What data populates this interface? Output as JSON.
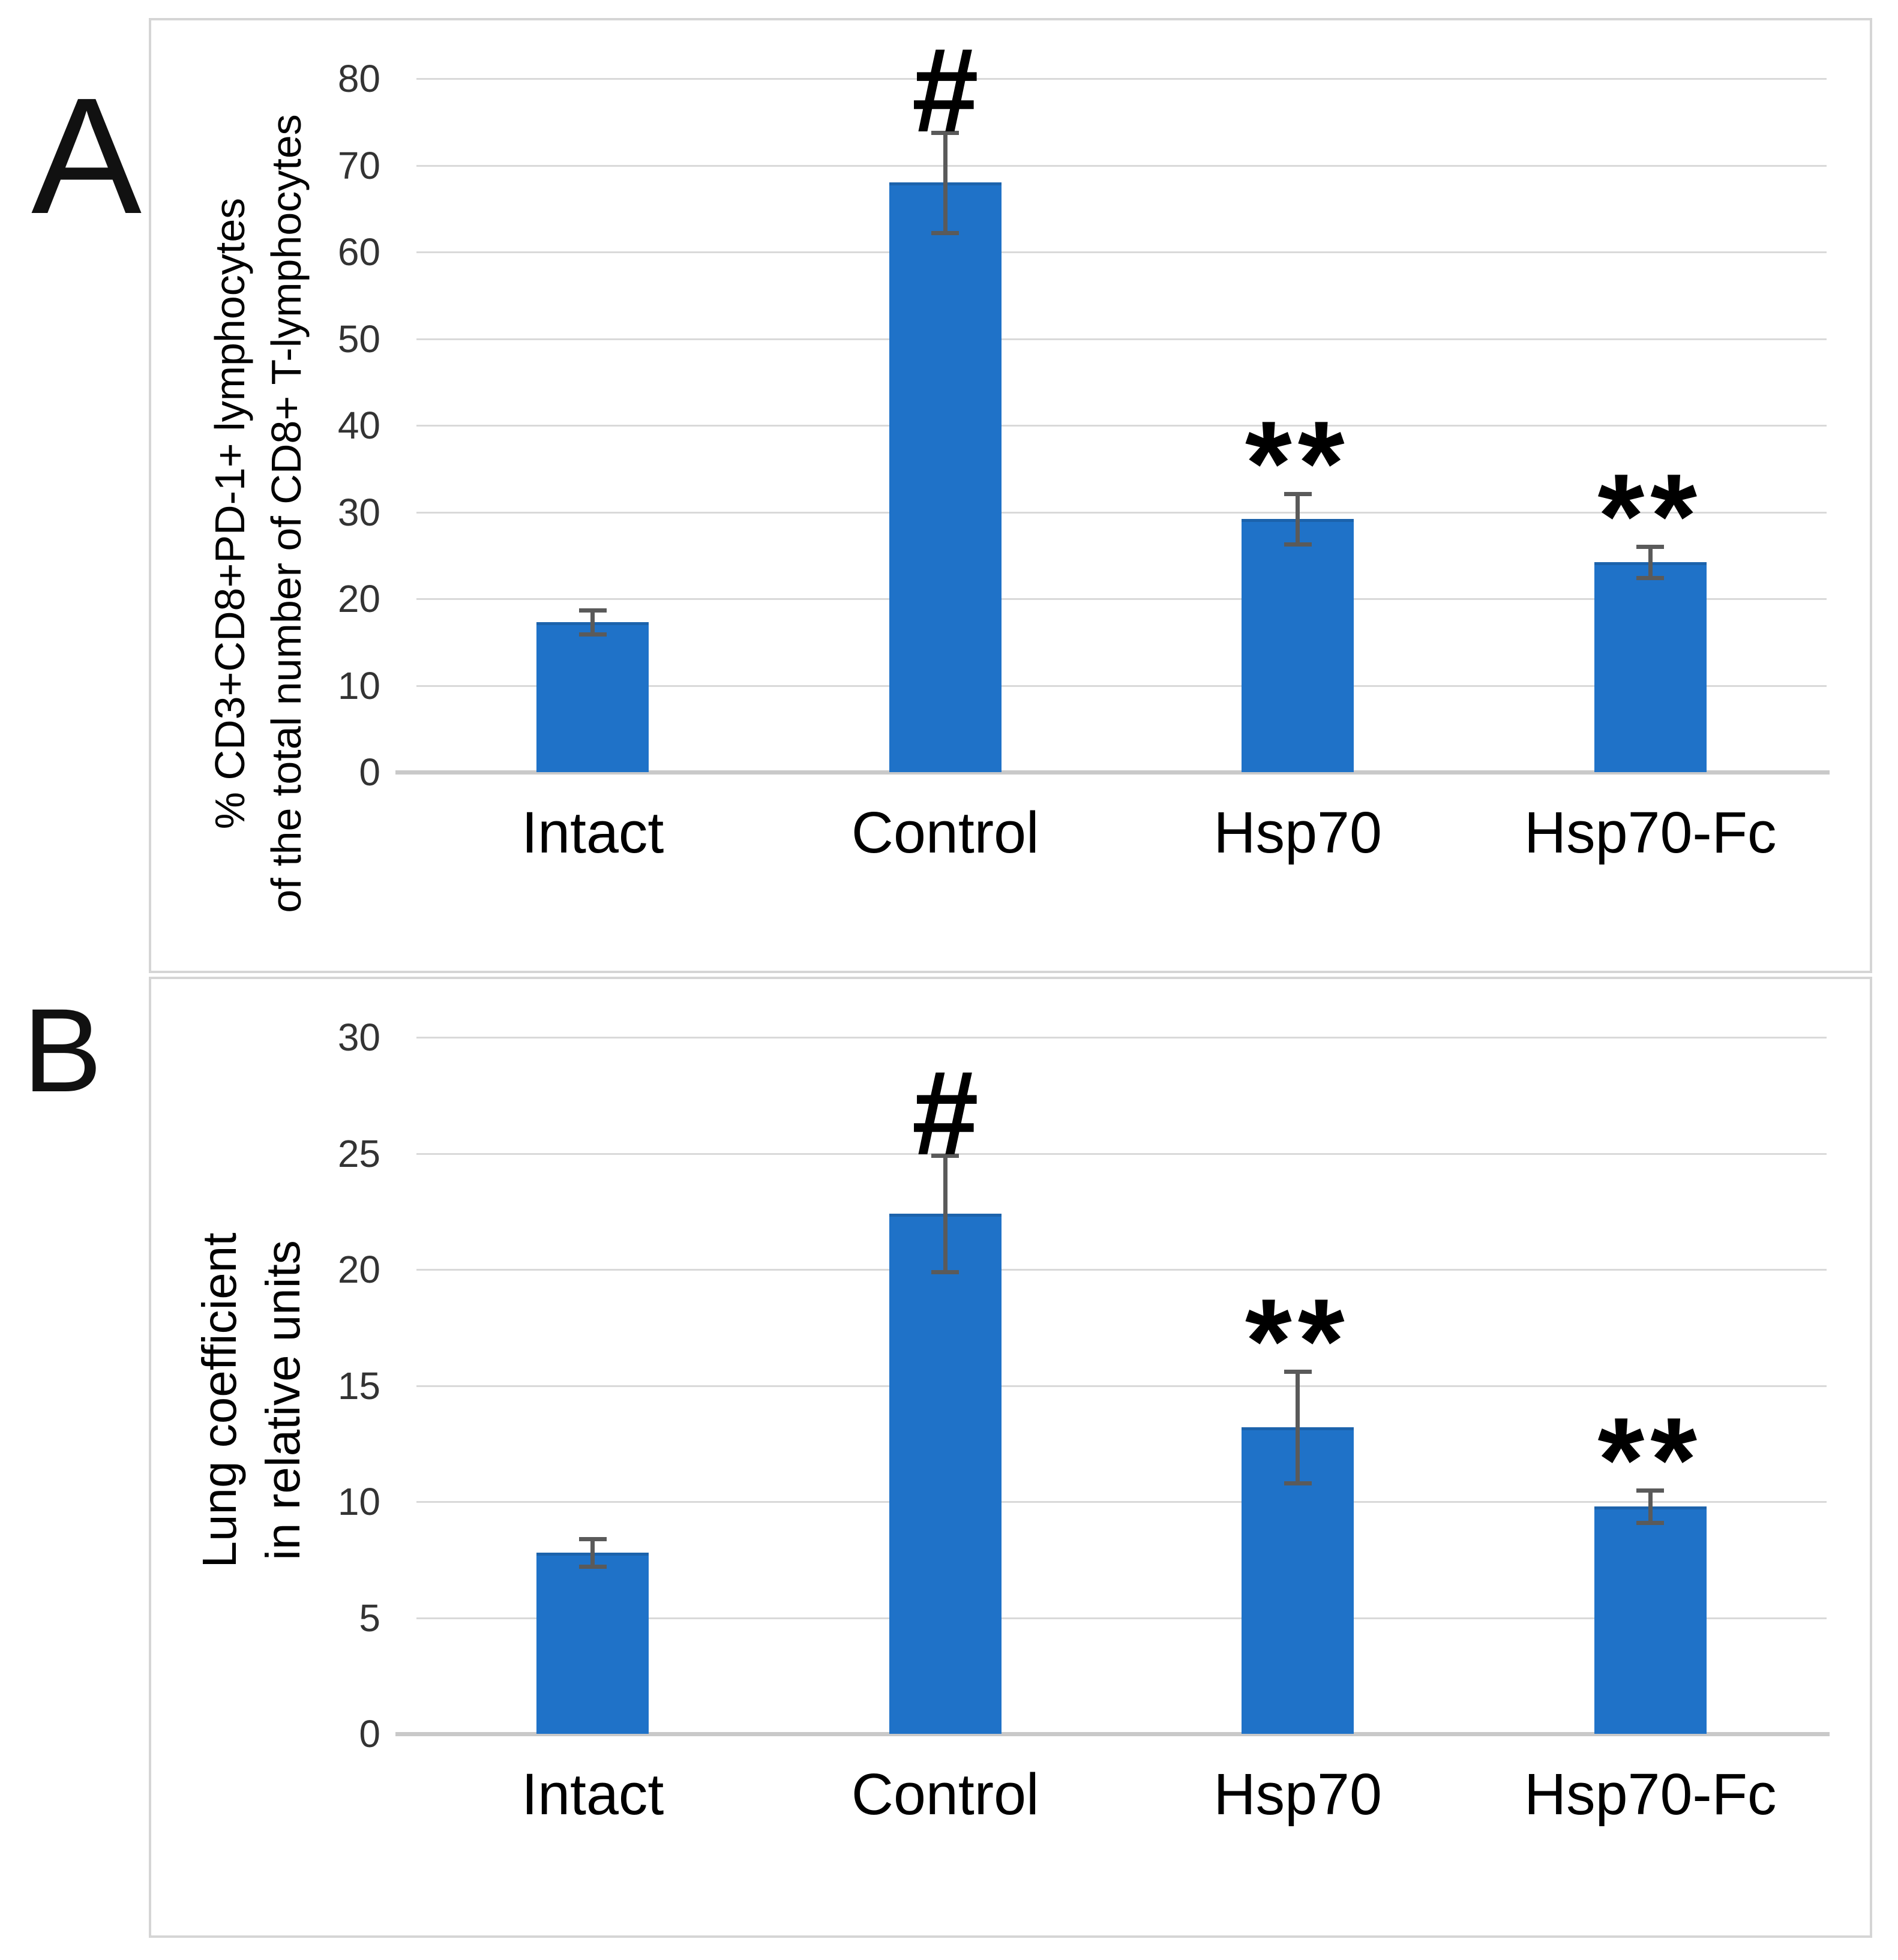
{
  "panel_labels": [
    "A",
    "B"
  ],
  "colors": {
    "bar": "#1f72c8",
    "bar_edge": "#1c63ac",
    "grid": "#d9d9d9",
    "axis": "#c9c9c9",
    "error": "#5a5a5a",
    "panel_border": "#d5d5d5",
    "tick_text": "#333333"
  },
  "chart_data": [
    {
      "type": "bar",
      "panel": "A",
      "title": "",
      "xlabel": "",
      "ylabel_lines": [
        "% CD3+CD8+PD-1+ lymphocytes",
        "of the total number of CD8+ T-lymphocytes"
      ],
      "categories": [
        "Intact",
        "Control",
        "Hsp70",
        "Hsp70-Fc"
      ],
      "values": [
        17.3,
        68.0,
        29.2,
        24.2
      ],
      "errors": [
        1.4,
        5.8,
        2.9,
        1.8
      ],
      "annotations": [
        "",
        "#",
        "**",
        "**"
      ],
      "ylim": [
        0,
        80
      ],
      "ytick_step": 10,
      "yticks": [
        0,
        10,
        20,
        30,
        40,
        50,
        60,
        70,
        80
      ],
      "grid": true,
      "legend": null
    },
    {
      "type": "bar",
      "panel": "B",
      "title": "",
      "xlabel": "",
      "ylabel_lines": [
        "Lung coefficient",
        "in relative units"
      ],
      "categories": [
        "Intact",
        "Control",
        "Hsp70",
        "Hsp70-Fc"
      ],
      "values": [
        7.8,
        22.4,
        13.2,
        9.8
      ],
      "errors": [
        0.6,
        2.5,
        2.4,
        0.7
      ],
      "annotations": [
        "",
        "#",
        "**",
        "**"
      ],
      "ylim": [
        0,
        30
      ],
      "ytick_step": 5,
      "yticks": [
        0,
        5,
        10,
        15,
        20,
        25,
        30
      ],
      "grid": true,
      "legend": null
    }
  ]
}
